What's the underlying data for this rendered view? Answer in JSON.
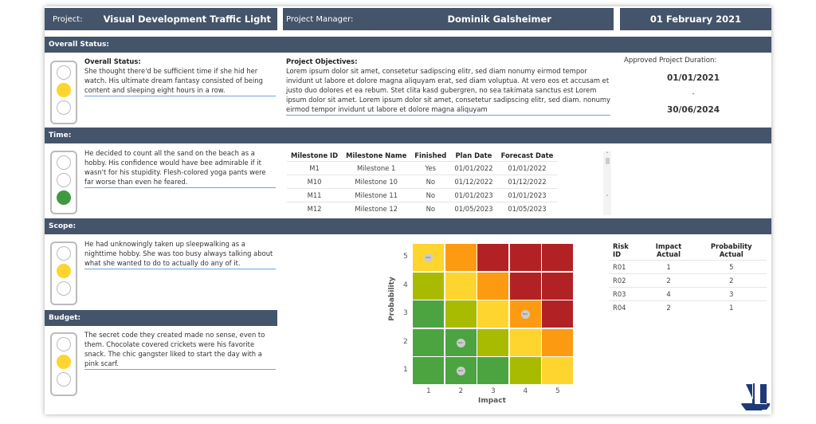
{
  "header": {
    "project_label": "Project:",
    "project_name": "Visual Development Traffic Light",
    "manager_label": "Project Manager:",
    "manager_name": "Dominik Galsheimer",
    "date": "01 February 2021"
  },
  "overall": {
    "bar": "Overall Status:",
    "status_title": "Overall Status:",
    "status_text": "She thought there'd be sufficient time if she hid her watch. His ultimate dream fantasy consisted of being content and sleeping eight hours in a row.",
    "light": "yellow",
    "objectives_title": "Project Objectives:",
    "objectives_text": "Lorem ipsum dolor sit amet, consetetur sadipscing elitr, sed diam nonumy eirmod tempor invidunt ut labore et dolore magna aliquyam erat, sed diam voluptua. At vero eos et accusam et justo duo dolores et ea rebum. Stet clita kasd gubergren, no sea takimata sanctus est Lorem ipsum dolor sit amet. Lorem ipsum dolor sit amet, consetetur sadipscing elitr, sed diam. nonumy eirmod tempor invidunt ut labore et dolore magna aliquyam",
    "duration_label": "Approved Project Duration:",
    "start": "01/01/2021",
    "sep": "-",
    "end": "30/06/2024"
  },
  "time": {
    "bar": "Time:",
    "text": "He decided to count all the sand on the beach as a hobby. His confidence would have bee admirable if it wasn't for his stupidity. Flesh-colored yoga pants were far worse than even he feared.",
    "light": "green",
    "columns": [
      "Milestone ID",
      "Milestone Name",
      "Finished",
      "Plan Date",
      "Forecast Date"
    ],
    "rows": [
      [
        "M1",
        "Milestone 1",
        "Yes",
        "01/01/2022",
        "01/01/2022"
      ],
      [
        "M10",
        "Milestone 10",
        "No",
        "01/12/2022",
        "01/12/2022"
      ],
      [
        "M11",
        "Milestone 11",
        "No",
        "01/01/2023",
        "01/01/2023"
      ],
      [
        "M12",
        "Milestone 12",
        "No",
        "01/05/2023",
        "01/05/2023"
      ]
    ]
  },
  "scope": {
    "bar": "Scope:",
    "text": "He had unknowingly taken up sleepwalking as a nighttime hobby. She was too busy always talking about what she wanted to do to actually do any of it.",
    "light": "yellow"
  },
  "budget": {
    "bar": "Budget:",
    "text": "The secret code they created made no sense, even to them. Chocolate covered crickets were his favorite snack. The chic gangster liked to start the day with a pink scarf.",
    "light": "yellow"
  },
  "risk_matrix": {
    "xlabel": "Impact",
    "ylabel": "Probability",
    "ticks": [
      "1",
      "2",
      "3",
      "4",
      "5"
    ],
    "colors": {
      "green": "#4ca441",
      "olive": "#a9bb00",
      "yellow": "#fed52e",
      "orange": "#fc9b12",
      "red": "#b22225"
    },
    "grid_rows_top_to_bottom": [
      [
        "yellow",
        "orange",
        "red",
        "red",
        "red"
      ],
      [
        "olive",
        "yellow",
        "orange",
        "red",
        "red"
      ],
      [
        "green",
        "olive",
        "yellow",
        "orange",
        "red"
      ],
      [
        "green",
        "green",
        "olive",
        "yellow",
        "orange"
      ],
      [
        "green",
        "green",
        "green",
        "olive",
        "yellow"
      ]
    ],
    "points": [
      {
        "id": "R01",
        "impact": 1,
        "probability": 5
      },
      {
        "id": "R02",
        "impact": 2,
        "probability": 2
      },
      {
        "id": "R03",
        "impact": 4,
        "probability": 3
      },
      {
        "id": "R04",
        "impact": 2,
        "probability": 1
      }
    ]
  },
  "risk_table": {
    "columns": [
      "Risk ID",
      "Impact Actual",
      "Probability Actual"
    ],
    "rows": [
      [
        "R01",
        "1",
        "5"
      ],
      [
        "R02",
        "2",
        "2"
      ],
      [
        "R03",
        "4",
        "3"
      ],
      [
        "R04",
        "2",
        "1"
      ]
    ]
  },
  "colors": {
    "header": "#44546a",
    "lamp_yellow": "#fed52e",
    "lamp_green": "#3e9a3e"
  }
}
